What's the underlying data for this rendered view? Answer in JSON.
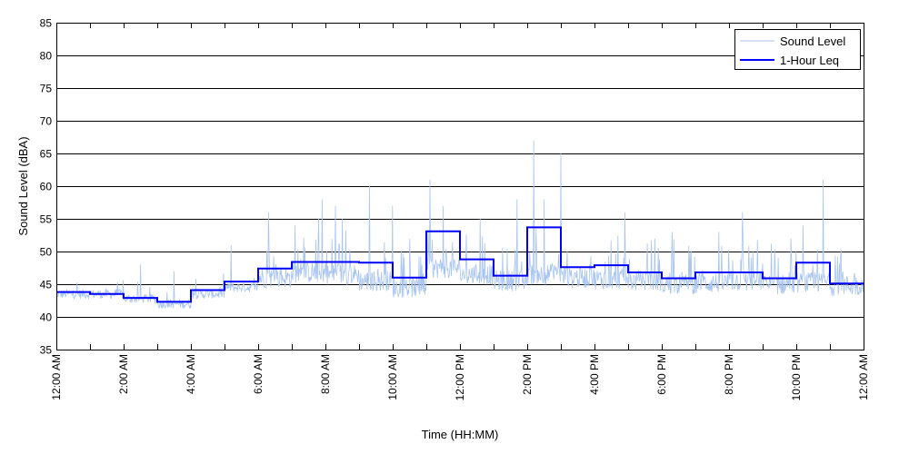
{
  "chart_data": {
    "type": "line",
    "title": "",
    "xlabel": "Time (HH:MM)",
    "ylabel": "Sound Level (dBA)",
    "xlim": [
      0,
      24
    ],
    "ylim": [
      35,
      85
    ],
    "yticks": [
      35,
      40,
      45,
      50,
      55,
      60,
      65,
      70,
      75,
      80,
      85
    ],
    "xtick_labels": [
      "12:00 AM",
      "2:00 AM",
      "4:00 AM",
      "6:00 AM",
      "8:00 AM",
      "10:00 AM",
      "12:00 PM",
      "2:00 PM",
      "4:00 PM",
      "6:00 PM",
      "8:00 PM",
      "10:00 PM",
      "12:00 AM"
    ],
    "xtick_hours": [
      0,
      2,
      4,
      6,
      8,
      10,
      12,
      14,
      16,
      18,
      20,
      22,
      24
    ],
    "minor_xticks_hours": [
      1,
      3,
      5,
      7,
      9,
      11,
      13,
      15,
      17,
      19,
      21,
      23
    ],
    "grid": "horizontal",
    "legend_position": "top-right",
    "series": [
      {
        "name": "Sound Level",
        "color": "#a8c4f0",
        "style": "noisy-thin-line",
        "hourly_base": [
          43.5,
          43.5,
          42.8,
          42.0,
          43.5,
          44.5,
          46.0,
          46.8,
          46.5,
          45.5,
          44.5,
          47.5,
          46.5,
          45.5,
          46.5,
          46.0,
          45.8,
          45.5,
          45.0,
          45.2,
          45.5,
          45.0,
          45.2,
          44.8
        ],
        "peaks": [
          {
            "x": 6.3,
            "y": 56
          },
          {
            "x": 7.1,
            "y": 54
          },
          {
            "x": 7.8,
            "y": 55
          },
          {
            "x": 7.9,
            "y": 58
          },
          {
            "x": 8.3,
            "y": 57
          },
          {
            "x": 8.5,
            "y": 55
          },
          {
            "x": 9.3,
            "y": 60
          },
          {
            "x": 10.0,
            "y": 57
          },
          {
            "x": 10.5,
            "y": 52
          },
          {
            "x": 11.1,
            "y": 61
          },
          {
            "x": 11.5,
            "y": 57
          },
          {
            "x": 12.6,
            "y": 55
          },
          {
            "x": 13.7,
            "y": 58
          },
          {
            "x": 14.2,
            "y": 67
          },
          {
            "x": 14.5,
            "y": 58
          },
          {
            "x": 15.0,
            "y": 65
          },
          {
            "x": 16.9,
            "y": 56
          },
          {
            "x": 17.8,
            "y": 52
          },
          {
            "x": 18.3,
            "y": 53
          },
          {
            "x": 19.7,
            "y": 53
          },
          {
            "x": 20.4,
            "y": 56
          },
          {
            "x": 22.2,
            "y": 54
          },
          {
            "x": 22.8,
            "y": 61
          },
          {
            "x": 5.2,
            "y": 51
          },
          {
            "x": 3.5,
            "y": 47
          },
          {
            "x": 2.5,
            "y": 48
          }
        ]
      },
      {
        "name": "1-Hour Leq",
        "color": "#0000ff",
        "style": "step",
        "x": [
          0,
          1,
          2,
          3,
          4,
          5,
          6,
          7,
          8,
          9,
          10,
          11,
          12,
          13,
          14,
          15,
          16,
          17,
          18,
          19,
          20,
          21,
          22,
          23
        ],
        "values": [
          43.8,
          43.5,
          42.9,
          42.3,
          44.1,
          45.4,
          47.4,
          48.4,
          48.4,
          48.3,
          46.0,
          53.1,
          48.8,
          46.3,
          53.7,
          47.6,
          47.9,
          46.8,
          45.9,
          46.8,
          46.8,
          45.9,
          48.3,
          45.1
        ]
      }
    ]
  }
}
